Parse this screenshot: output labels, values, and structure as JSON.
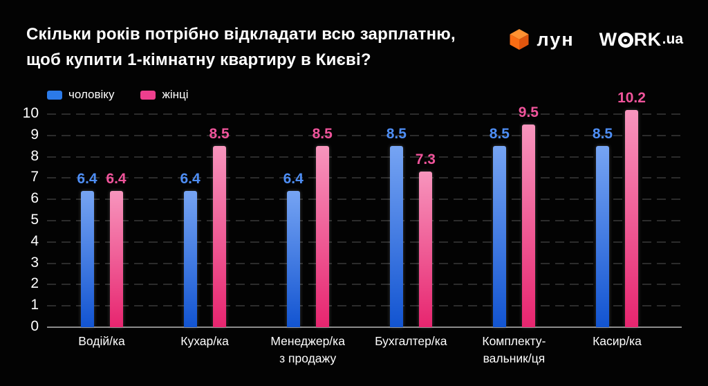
{
  "title": {
    "line1": "Скільки років потрібно відкладати всю зарплатню,",
    "line2": "щоб купити 1-кімнатну квартиру в Києві?"
  },
  "logos": {
    "lun_label": "лун",
    "work_w": "W",
    "work_rk": "RK",
    "work_suffix": ".ua",
    "lun_cube_top": "#ff9232",
    "lun_cube_left": "#fb6d14",
    "lun_cube_right": "#e0560e"
  },
  "legend": [
    {
      "label": "чоловіку",
      "color": "#2b7ae9"
    },
    {
      "label": "жінці",
      "color": "#ee3f8e"
    }
  ],
  "colors": {
    "background": "#030303",
    "male_gradient_top": "#76a4f3",
    "male_gradient_bottom": "#1254d1",
    "male_value_label": "#4e8ef5",
    "female_gradient_top": "#f795bd",
    "female_gradient_bottom": "#e7256f",
    "female_value_label": "#f0549b",
    "gridline": "#2c2c2c",
    "baseline": "#8c8c8c",
    "text": "#ffffff"
  },
  "chart_data": {
    "type": "bar",
    "title": "Скільки років потрібно відкладати всю зарплатню, щоб купити 1-кімнатну квартиру в Києві?",
    "categories": [
      "Водій/ка",
      "Кухар/ка",
      "Менеджер/ка\nз продажу",
      "Бухгалтер/ка",
      "Комплекту-\nвальник/ця",
      "Касир/ка"
    ],
    "series": [
      {
        "name": "чоловіку",
        "values": [
          6.4,
          6.4,
          6.4,
          8.5,
          8.5,
          8.5
        ]
      },
      {
        "name": "жінці",
        "values": [
          6.4,
          8.5,
          8.5,
          7.3,
          9.5,
          10.2
        ]
      }
    ],
    "ylim": [
      0,
      10
    ],
    "yticks": [
      0,
      1,
      2,
      3,
      4,
      5,
      6,
      7,
      8,
      9,
      10
    ],
    "grid": "horizontal-dashed",
    "legend_position": "top-left"
  }
}
